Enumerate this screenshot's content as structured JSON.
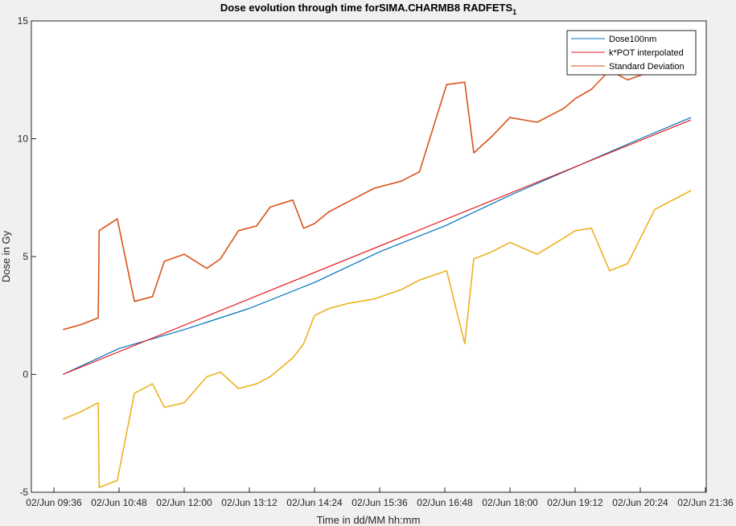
{
  "chart_data": {
    "type": "line",
    "title": "Dose evolution through time forSIMA.CHARMB8 RADFETS",
    "title_subscript": "1",
    "xlabel": "Time in dd/MM hh:mm",
    "ylabel": "Dose in Gy",
    "xlim": [
      "02/Jun 09:36",
      "02/Jun 21:36"
    ],
    "ylim": [
      -5,
      15
    ],
    "x_ticks": [
      "02/Jun 09:36",
      "02/Jun 10:48",
      "02/Jun 12:00",
      "02/Jun 13:12",
      "02/Jun 14:24",
      "02/Jun 15:36",
      "02/Jun 16:48",
      "02/Jun 18:00",
      "02/Jun 19:12",
      "02/Jun 20:24",
      "02/Jun 21:36"
    ],
    "y_ticks": [
      "-5",
      "0",
      "5",
      "10",
      "15"
    ],
    "legend_position": "top-right",
    "grid": false,
    "series": [
      {
        "name": "Dose100nm",
        "color": "#0072BD",
        "x": [
          "02/Jun 09:46",
          "02/Jun 10:48",
          "02/Jun 12:00",
          "02/Jun 13:12",
          "02/Jun 14:24",
          "02/Jun 15:36",
          "02/Jun 16:48",
          "02/Jun 18:00",
          "02/Jun 19:12",
          "02/Jun 20:24",
          "02/Jun 21:20"
        ],
        "values": [
          0.0,
          1.1,
          1.9,
          2.8,
          3.9,
          5.2,
          6.3,
          7.6,
          8.8,
          10.0,
          10.9
        ]
      },
      {
        "name": "k*POT interpolated",
        "color": "#E8191C",
        "x": [
          "02/Jun 09:46",
          "02/Jun 21:20"
        ],
        "values": [
          0.0,
          10.8
        ]
      },
      {
        "name": "Standard Deviation",
        "color": "#D95319",
        "x": [
          "02/Jun 09:46",
          "02/Jun 10:05",
          "02/Jun 10:25",
          "02/Jun 10:26",
          "02/Jun 10:46",
          "02/Jun 11:05",
          "02/Jun 11:25",
          "02/Jun 11:38",
          "02/Jun 12:00",
          "02/Jun 12:25",
          "02/Jun 12:40",
          "02/Jun 13:00",
          "02/Jun 13:20",
          "02/Jun 13:35",
          "02/Jun 14:00",
          "02/Jun 14:12",
          "02/Jun 14:24",
          "02/Jun 14:40",
          "02/Jun 15:00",
          "02/Jun 15:30",
          "02/Jun 16:00",
          "02/Jun 16:20",
          "02/Jun 16:50",
          "02/Jun 17:10",
          "02/Jun 17:20",
          "02/Jun 17:40",
          "02/Jun 18:00",
          "02/Jun 18:30",
          "02/Jun 19:00",
          "02/Jun 19:12",
          "02/Jun 19:30",
          "02/Jun 19:50",
          "02/Jun 20:10",
          "02/Jun 20:40",
          "02/Jun 21:20"
        ],
        "values": [
          1.9,
          2.1,
          2.4,
          6.1,
          6.6,
          3.1,
          3.3,
          4.8,
          5.1,
          4.5,
          4.9,
          6.1,
          6.3,
          7.1,
          7.4,
          6.2,
          6.4,
          6.9,
          7.3,
          7.9,
          8.2,
          8.6,
          12.3,
          12.4,
          9.4,
          10.1,
          10.9,
          10.7,
          11.3,
          11.7,
          12.1,
          12.9,
          12.5,
          12.9,
          13.9
        ]
      },
      {
        "name": "",
        "color": "#EDB120",
        "x": [
          "02/Jun 09:46",
          "02/Jun 10:05",
          "02/Jun 10:25",
          "02/Jun 10:26",
          "02/Jun 10:46",
          "02/Jun 11:05",
          "02/Jun 11:25",
          "02/Jun 11:38",
          "02/Jun 12:00",
          "02/Jun 12:25",
          "02/Jun 12:40",
          "02/Jun 13:00",
          "02/Jun 13:20",
          "02/Jun 13:35",
          "02/Jun 14:00",
          "02/Jun 14:12",
          "02/Jun 14:24",
          "02/Jun 14:40",
          "02/Jun 15:00",
          "02/Jun 15:30",
          "02/Jun 16:00",
          "02/Jun 16:20",
          "02/Jun 16:50",
          "02/Jun 17:10",
          "02/Jun 17:20",
          "02/Jun 17:40",
          "02/Jun 18:00",
          "02/Jun 18:30",
          "02/Jun 19:00",
          "02/Jun 19:12",
          "02/Jun 19:30",
          "02/Jun 19:50",
          "02/Jun 20:10",
          "02/Jun 20:40",
          "02/Jun 21:20"
        ],
        "values": [
          -1.9,
          -1.6,
          -1.2,
          -4.8,
          -4.5,
          -0.8,
          -0.4,
          -1.4,
          -1.2,
          -0.1,
          0.1,
          -0.6,
          -0.4,
          -0.1,
          0.7,
          1.3,
          2.5,
          2.8,
          3.0,
          3.2,
          3.6,
          4.0,
          4.4,
          1.3,
          4.9,
          5.2,
          5.6,
          5.1,
          5.8,
          6.1,
          6.2,
          4.4,
          4.7,
          7.0,
          7.8
        ]
      }
    ]
  }
}
